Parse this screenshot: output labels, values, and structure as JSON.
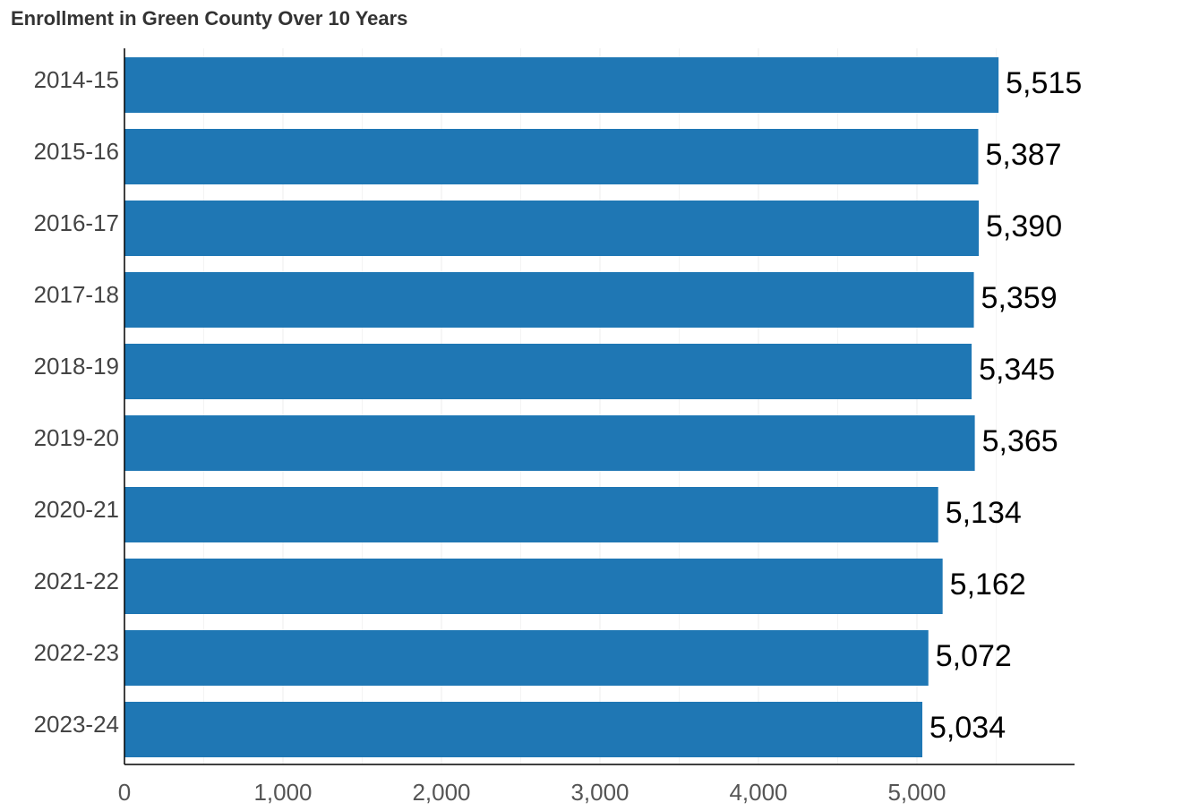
{
  "chart_data": {
    "type": "bar",
    "orientation": "horizontal",
    "title": "Enrollment in Green County Over 10 Years",
    "xlabel": "",
    "ylabel": "",
    "categories": [
      "2014-15",
      "2015-16",
      "2016-17",
      "2017-18",
      "2018-19",
      "2019-20",
      "2020-21",
      "2021-22",
      "2022-23",
      "2023-24"
    ],
    "values": [
      5515,
      5387,
      5390,
      5359,
      5345,
      5365,
      5134,
      5162,
      5072,
      5034
    ],
    "value_labels": [
      "5,515",
      "5,387",
      "5,390",
      "5,359",
      "5,345",
      "5,365",
      "5,134",
      "5,162",
      "5,072",
      "5,034"
    ],
    "xlim": [
      0,
      6000
    ],
    "x_ticks": [
      0,
      1000,
      2000,
      3000,
      4000,
      5000
    ],
    "x_tick_labels": [
      "0",
      "1,000",
      "2,000",
      "3,000",
      "4,000",
      "5,000"
    ],
    "grid": true,
    "legend": "none",
    "bar_color": "#1f77b4",
    "grid_color": "#eeeeee",
    "axis_color": "#000000"
  }
}
